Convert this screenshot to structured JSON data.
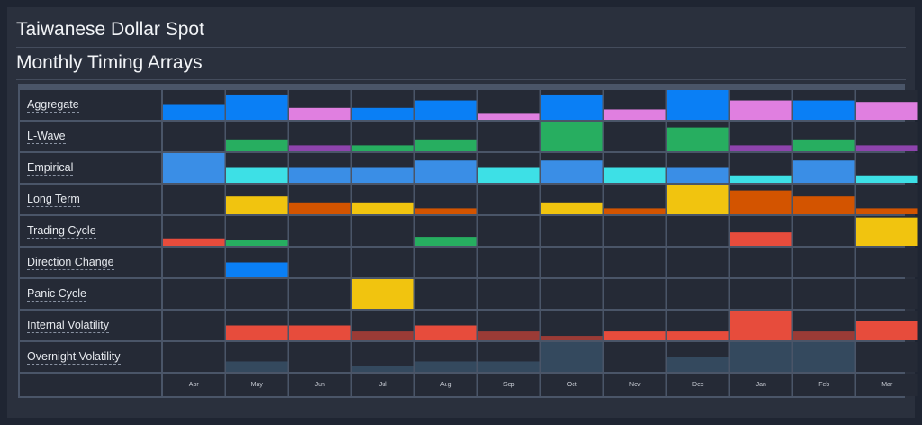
{
  "header": {
    "title": "Taiwanese Dollar Spot",
    "subtitle": "Monthly Timing Arrays"
  },
  "colors": {
    "bg": "#1f2532",
    "panel": "#2a303d",
    "cell": "#252a36",
    "grid_line": "#4a5568",
    "blue": "#0a7ff5",
    "pink": "#e07fe0",
    "green": "#27ae60",
    "purple": "#8e44ad",
    "light_blue": "#3a8ee6",
    "cyan": "#3de0e6",
    "yellow": "#f1c40f",
    "orange": "#d35400",
    "red": "#e74c3c",
    "dark_red": "#9b3b36",
    "slate": "#34495e"
  },
  "chart_data": {
    "type": "heatmap",
    "categories": [
      "Apr",
      "May",
      "Jun",
      "Jul",
      "Aug",
      "Sep",
      "Oct",
      "Nov",
      "Dec",
      "Jan",
      "Feb",
      "Mar"
    ],
    "rows": [
      {
        "name": "Aggregate",
        "values": [
          0.5,
          0.85,
          0.4,
          0.4,
          0.65,
          0.2,
          0.85,
          0.35,
          1.0,
          0.65,
          0.65,
          0.6
        ],
        "colors": [
          "blue",
          "blue",
          "pink",
          "blue",
          "blue",
          "pink",
          "blue",
          "pink",
          "blue",
          "pink",
          "blue",
          "pink"
        ]
      },
      {
        "name": "L-Wave",
        "values": [
          0,
          0.4,
          0.2,
          0.2,
          0.4,
          0,
          1.0,
          0,
          0.8,
          0.2,
          0.4,
          0.2
        ],
        "colors": [
          "green",
          "green",
          "purple",
          "green",
          "green",
          "green",
          "green",
          "green",
          "green",
          "purple",
          "green",
          "purple"
        ]
      },
      {
        "name": "Empirical",
        "values": [
          1.0,
          0.5,
          0.5,
          0.5,
          0.75,
          0.5,
          0.75,
          0.5,
          0.5,
          0.25,
          0.75,
          0.25
        ],
        "colors": [
          "light_blue",
          "cyan",
          "light_blue",
          "light_blue",
          "light_blue",
          "cyan",
          "light_blue",
          "cyan",
          "light_blue",
          "cyan",
          "light_blue",
          "cyan"
        ]
      },
      {
        "name": "Long Term",
        "values": [
          0,
          0.6,
          0.4,
          0.4,
          0.2,
          0,
          0.4,
          0.2,
          1.0,
          0.8,
          0.6,
          0.2
        ],
        "colors": [
          "yellow",
          "yellow",
          "orange",
          "yellow",
          "orange",
          "yellow",
          "yellow",
          "orange",
          "yellow",
          "orange",
          "orange",
          "orange"
        ]
      },
      {
        "name": "Trading Cycle",
        "values": [
          0.25,
          0.2,
          0,
          0,
          0.3,
          0,
          0,
          0,
          0,
          0.45,
          0,
          0.95
        ],
        "colors": [
          "red",
          "green",
          "green",
          "green",
          "green",
          "green",
          "green",
          "green",
          "green",
          "red",
          "green",
          "yellow"
        ]
      },
      {
        "name": "Direction Change",
        "values": [
          0,
          0.5,
          0,
          0,
          0,
          0,
          0,
          0,
          0,
          0,
          0,
          0
        ],
        "colors": [
          "blue",
          "blue",
          "blue",
          "blue",
          "blue",
          "blue",
          "blue",
          "blue",
          "blue",
          "blue",
          "blue",
          "blue"
        ]
      },
      {
        "name": "Panic Cycle",
        "values": [
          0,
          0,
          0,
          1.0,
          0,
          0,
          0,
          0,
          0,
          0,
          0,
          0
        ],
        "colors": [
          "yellow",
          "yellow",
          "yellow",
          "yellow",
          "yellow",
          "yellow",
          "yellow",
          "yellow",
          "yellow",
          "yellow",
          "yellow",
          "yellow"
        ]
      },
      {
        "name": "Internal Volatility",
        "values": [
          0,
          0.5,
          0.5,
          0.3,
          0.5,
          0.3,
          0.15,
          0.3,
          0.3,
          1.0,
          0.3,
          0.65
        ],
        "colors": [
          "red",
          "red",
          "red",
          "dark_red",
          "red",
          "dark_red",
          "dark_red",
          "red",
          "red",
          "red",
          "dark_red",
          "red"
        ]
      },
      {
        "name": "Overnight Volatility",
        "values": [
          0,
          0.35,
          0,
          0.2,
          0.35,
          0.35,
          1.0,
          0,
          0.5,
          1.0,
          1.0,
          0
        ],
        "colors": [
          "slate",
          "slate",
          "slate",
          "slate",
          "slate",
          "slate",
          "slate",
          "slate",
          "slate",
          "slate",
          "slate",
          "slate"
        ]
      }
    ]
  }
}
